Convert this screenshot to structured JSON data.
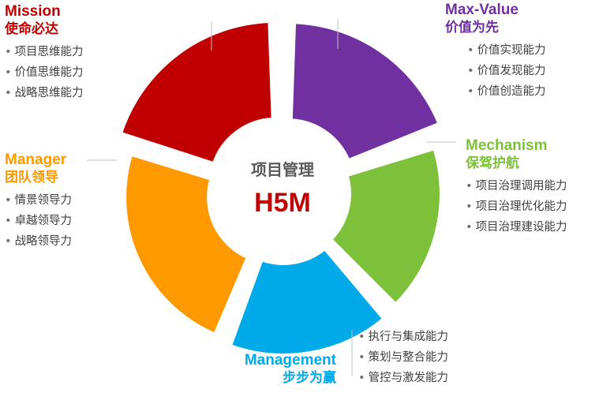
{
  "center": {
    "title": "项目管理",
    "subtitle": "H5M"
  },
  "colors": {
    "mission": "#c00000",
    "value": "#7030a0",
    "mechanism": "#7dc13b",
    "management": "#00a9e8",
    "manager": "#ff9900",
    "center_title": "#595959",
    "center_subtitle": "#c00000"
  },
  "segments": [
    {
      "key": "mission",
      "title_en": "Mission",
      "title_cn": "使命必达",
      "items": [
        "项目思维能力",
        "价值思维能力",
        "战略思维能力"
      ]
    },
    {
      "key": "value",
      "title_en": "Max-Value",
      "title_cn": "价值为先",
      "items": [
        "价值实现能力",
        "价值发现能力",
        "价值创造能力"
      ]
    },
    {
      "key": "mechanism",
      "title_en": "Mechanism",
      "title_cn": "保驾护航",
      "items": [
        "项目治理调用能力",
        "项目治理优化能力",
        "项目治理建设能力"
      ]
    },
    {
      "key": "management",
      "title_en": "Management",
      "title_cn": "步步为赢",
      "items": [
        "执行与集成能力",
        "策划与整合能力",
        "管控与激发能力"
      ]
    },
    {
      "key": "manager",
      "title_en": "Manager",
      "title_cn": "团队领导",
      "items": [
        "情景领导力",
        "卓越领导力",
        "战略领导力"
      ]
    }
  ],
  "bullet": "•"
}
